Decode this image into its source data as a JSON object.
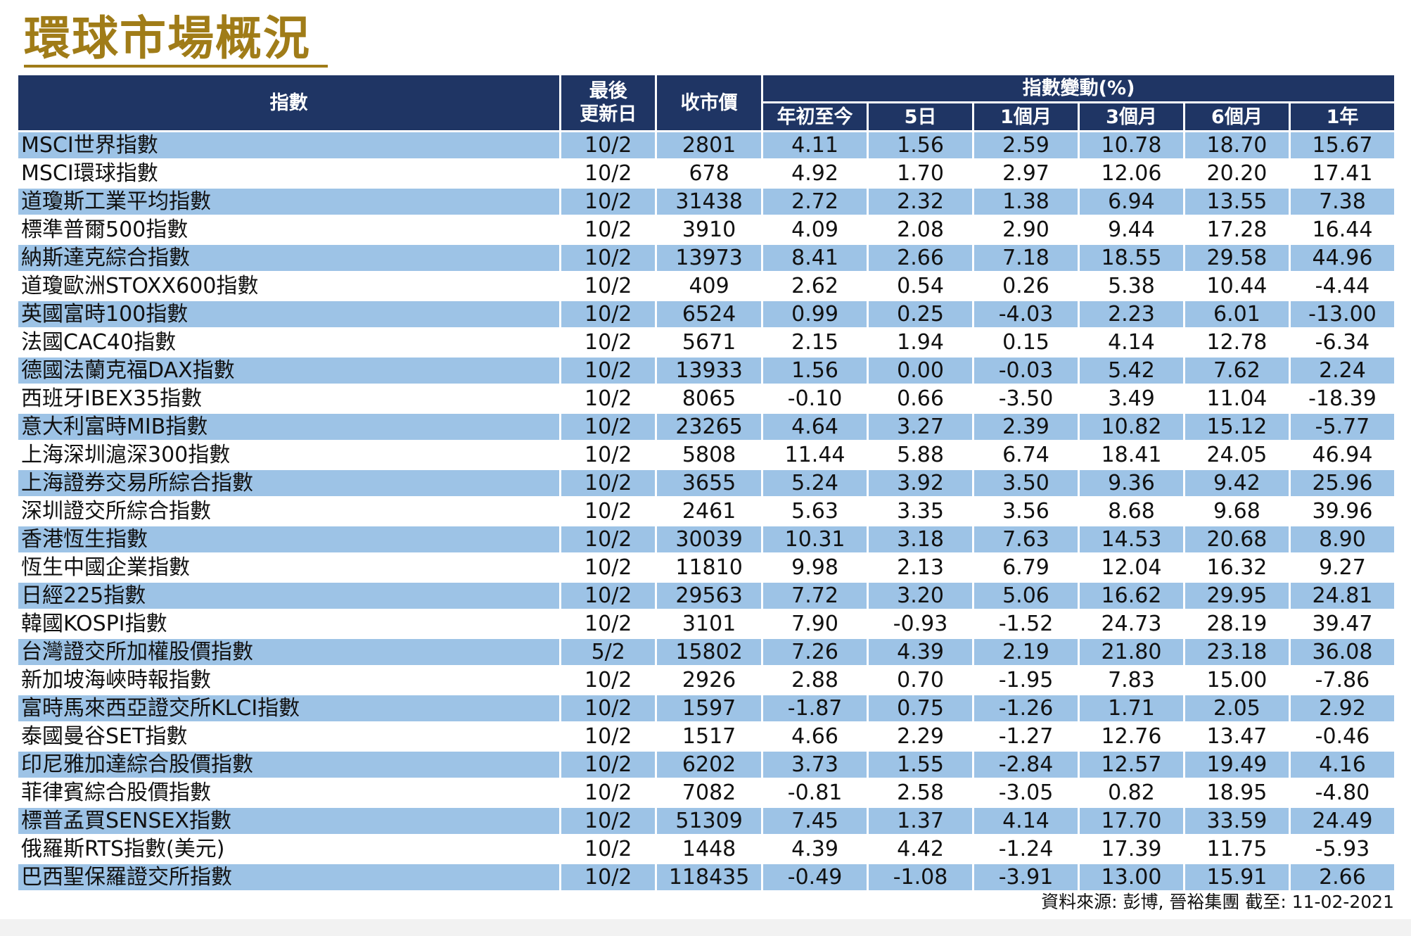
{
  "title": "環球市場概況",
  "headers": {
    "index": "指數",
    "last_update": "最後\n更新日",
    "close": "收市價",
    "change_group": "指數變動(%)",
    "ytd": "年初至今",
    "d5": "5日",
    "m1": "1個月",
    "m3": "3個月",
    "m6": "6個月",
    "y1": "1年"
  },
  "rows": [
    [
      "MSCI世界指數",
      "10/2",
      "2801",
      "4.11",
      "1.56",
      "2.59",
      "10.78",
      "18.70",
      "15.67"
    ],
    [
      "MSCI環球指數",
      "10/2",
      "678",
      "4.92",
      "1.70",
      "2.97",
      "12.06",
      "20.20",
      "17.41"
    ],
    [
      "道瓊斯工業平均指數",
      "10/2",
      "31438",
      "2.72",
      "2.32",
      "1.38",
      "6.94",
      "13.55",
      "7.38"
    ],
    [
      "標準普爾500指數",
      "10/2",
      "3910",
      "4.09",
      "2.08",
      "2.90",
      "9.44",
      "17.28",
      "16.44"
    ],
    [
      "納斯達克綜合指數",
      "10/2",
      "13973",
      "8.41",
      "2.66",
      "7.18",
      "18.55",
      "29.58",
      "44.96"
    ],
    [
      "道瓊歐洲STOXX600指數",
      "10/2",
      "409",
      "2.62",
      "0.54",
      "0.26",
      "5.38",
      "10.44",
      "-4.44"
    ],
    [
      "英國富時100指數",
      "10/2",
      "6524",
      "0.99",
      "0.25",
      "-4.03",
      "2.23",
      "6.01",
      "-13.00"
    ],
    [
      "法國CAC40指數",
      "10/2",
      "5671",
      "2.15",
      "1.94",
      "0.15",
      "4.14",
      "12.78",
      "-6.34"
    ],
    [
      "德國法蘭克福DAX指數",
      "10/2",
      "13933",
      "1.56",
      "0.00",
      "-0.03",
      "5.42",
      "7.62",
      "2.24"
    ],
    [
      "西班牙IBEX35指數",
      "10/2",
      "8065",
      "-0.10",
      "0.66",
      "-3.50",
      "3.49",
      "11.04",
      "-18.39"
    ],
    [
      "意大利富時MIB指數",
      "10/2",
      "23265",
      "4.64",
      "3.27",
      "2.39",
      "10.82",
      "15.12",
      "-5.77"
    ],
    [
      "上海深圳滬深300指數",
      "10/2",
      "5808",
      "11.44",
      "5.88",
      "6.74",
      "18.41",
      "24.05",
      "46.94"
    ],
    [
      "上海證券交易所綜合指數",
      "10/2",
      "3655",
      "5.24",
      "3.92",
      "3.50",
      "9.36",
      "9.42",
      "25.96"
    ],
    [
      "深圳證交所綜合指數",
      "10/2",
      "2461",
      "5.63",
      "3.35",
      "3.56",
      "8.68",
      "9.68",
      "39.96"
    ],
    [
      "香港恆生指數",
      "10/2",
      "30039",
      "10.31",
      "3.18",
      "7.63",
      "14.53",
      "20.68",
      "8.90"
    ],
    [
      "恆生中國企業指數",
      "10/2",
      "11810",
      "9.98",
      "2.13",
      "6.79",
      "12.04",
      "16.32",
      "9.27"
    ],
    [
      "日經225指數",
      "10/2",
      "29563",
      "7.72",
      "3.20",
      "5.06",
      "16.62",
      "29.95",
      "24.81"
    ],
    [
      "韓國KOSPI指數",
      "10/2",
      "3101",
      "7.90",
      "-0.93",
      "-1.52",
      "24.73",
      "28.19",
      "39.47"
    ],
    [
      "台灣證交所加權股價指數",
      "5/2",
      "15802",
      "7.26",
      "4.39",
      "2.19",
      "21.80",
      "23.18",
      "36.08"
    ],
    [
      "新加坡海峽時報指數",
      "10/2",
      "2926",
      "2.88",
      "0.70",
      "-1.95",
      "7.83",
      "15.00",
      "-7.86"
    ],
    [
      "富時馬來西亞證交所KLCI指數",
      "10/2",
      "1597",
      "-1.87",
      "0.75",
      "-1.26",
      "1.71",
      "2.05",
      "2.92"
    ],
    [
      "泰國曼谷SET指數",
      "10/2",
      "1517",
      "4.66",
      "2.29",
      "-1.27",
      "12.76",
      "13.47",
      "-0.46"
    ],
    [
      "印尼雅加達綜合股價指數",
      "10/2",
      "6202",
      "3.73",
      "1.55",
      "-2.84",
      "12.57",
      "19.49",
      "4.16"
    ],
    [
      "菲律賓綜合股價指數",
      "10/2",
      "7082",
      "-0.81",
      "2.58",
      "-3.05",
      "0.82",
      "18.95",
      "-4.80"
    ],
    [
      "標普孟買SENSEX指數",
      "10/2",
      "51309",
      "7.45",
      "1.37",
      "4.14",
      "17.70",
      "33.59",
      "24.49"
    ],
    [
      "俄羅斯RTS指數(美元)",
      "10/2",
      "1448",
      "4.39",
      "4.42",
      "-1.24",
      "17.39",
      "11.75",
      "-5.93"
    ],
    [
      "巴西聖保羅證交所指數",
      "10/2",
      "118435",
      "-0.49",
      "-1.08",
      "-3.91",
      "13.00",
      "15.91",
      "2.66"
    ]
  ],
  "source": "資料來源: 彭博, 晉裕集團 截至:  11-02-2021",
  "colors": {
    "title": "#a07c18",
    "header_bg": "#1f3564",
    "row_stripe": "#9dc3e6",
    "row_plain": "#ffffff"
  }
}
